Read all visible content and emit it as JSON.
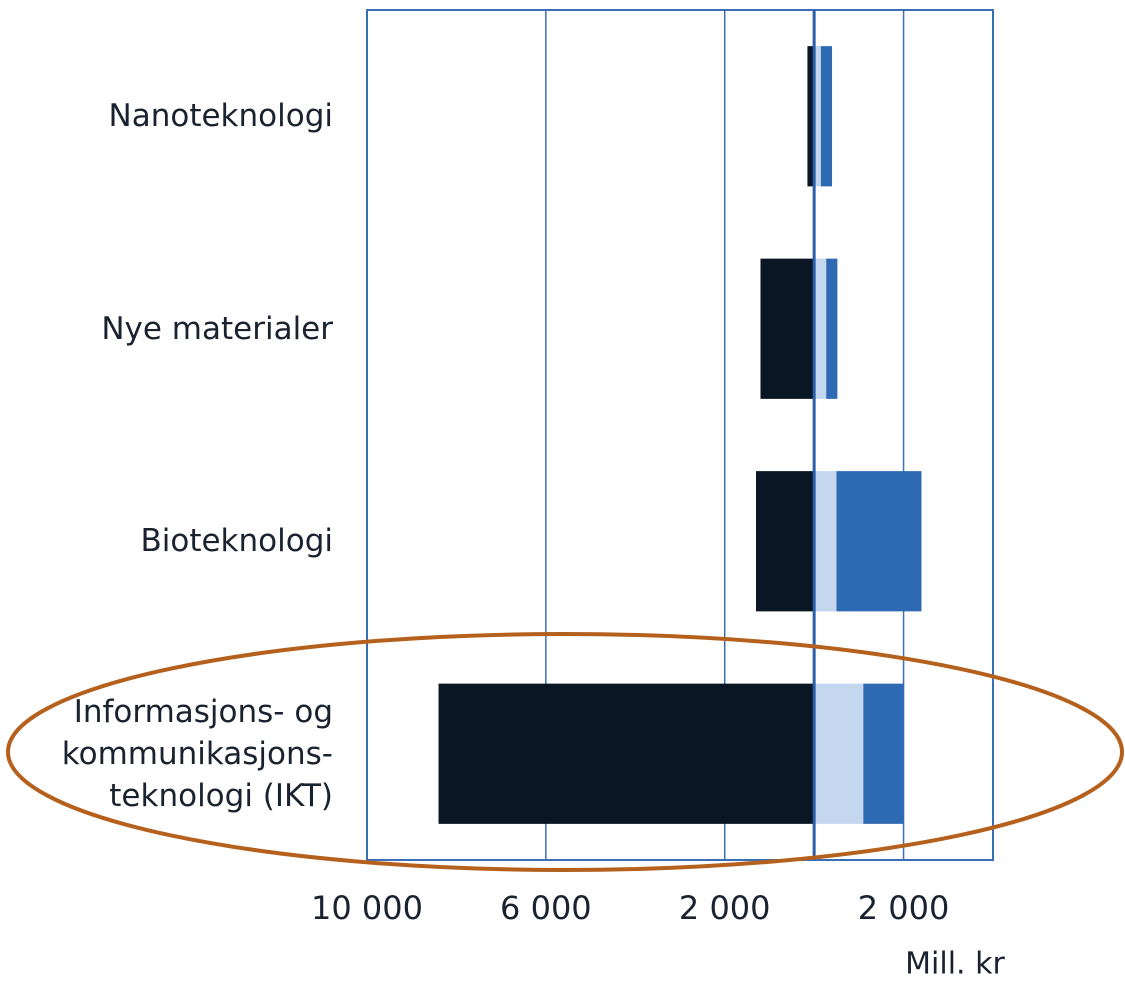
{
  "chart_data": {
    "type": "bar",
    "orientation": "horizontal",
    "stacked": true,
    "categories": [
      "Nanoteknologi",
      "Nye materialer",
      "Bioteknologi",
      "Informasjons- og\nkommunikasjons-\nteknologi (IKT)"
    ],
    "series": [
      {
        "color": "#0b1624",
        "values": [
          -150,
          -1200,
          -1300,
          -8400
        ]
      },
      {
        "color": "#c5d7ee",
        "values": [
          150,
          270,
          500,
          1100
        ]
      },
      {
        "color": "#2e69b3",
        "values": [
          250,
          250,
          1900,
          900
        ]
      }
    ],
    "xlim": [
      -10000,
      4000
    ],
    "xticks": [
      {
        "value": -10000,
        "label": "10 000"
      },
      {
        "value": -6000,
        "label": "6 000"
      },
      {
        "value": -2000,
        "label": "2 000"
      },
      {
        "value": 2000,
        "label": "2 000"
      }
    ],
    "xlabel": "Mill. kr",
    "grid": true
  }
}
